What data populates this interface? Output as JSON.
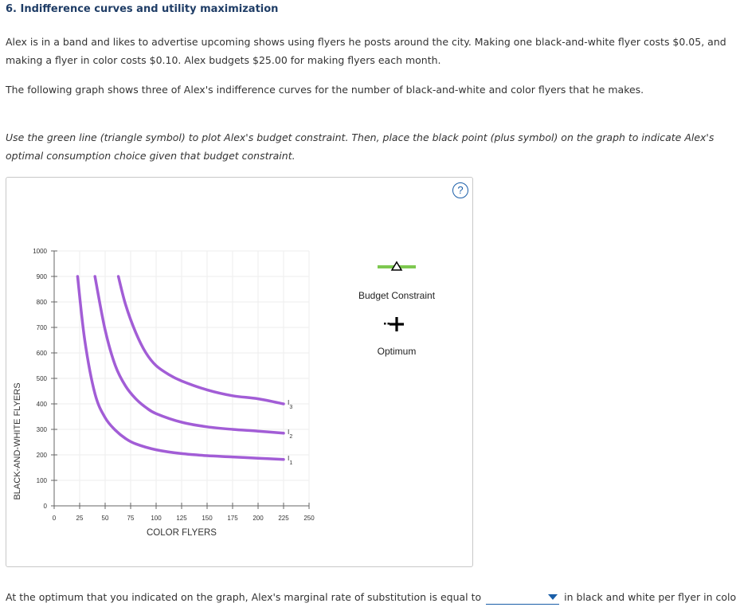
{
  "header": {
    "title": "6. Indifference curves and utility maximization"
  },
  "intro": {
    "p1": "Alex is in a band and likes to advertise upcoming shows using flyers he posts around the city. Making one black-and-white flyer costs $0.05, and making a flyer in color costs $0.10. Alex budgets $25.00 for making flyers each month.",
    "p2": "The following graph shows three of Alex's indifference curves for the number of black-and-white and color flyers that he makes."
  },
  "instruction": "Use the green line (triangle symbol) to plot Alex's budget constraint. Then, place the black point (plus symbol) on the graph to indicate Alex's optimal consumption choice given that budget constraint.",
  "help_label": "?",
  "palette": {
    "budget_label": "Budget Constraint",
    "budget_color": "#7ec850",
    "optimum_label": "Optimum",
    "optimum_color": "#000000"
  },
  "question": {
    "prefix": "At the optimum that you indicated on the graph, Alex's marginal rate of substitution is equal to",
    "selected": "",
    "suffix": "in black and white per flyer in color."
  },
  "chart_data": {
    "type": "line",
    "xlabel": "COLOR FLYERS",
    "ylabel": "BLACK-AND-WHITE FLYERS",
    "xlim": [
      0,
      250
    ],
    "ylim": [
      0,
      1000
    ],
    "xticks": [
      0,
      25,
      50,
      75,
      100,
      125,
      150,
      175,
      200,
      225,
      250
    ],
    "yticks": [
      0,
      100,
      200,
      300,
      400,
      500,
      600,
      700,
      800,
      900,
      1000
    ],
    "grid": true,
    "curve_color": "#a25dd6",
    "series": [
      {
        "label": "I",
        "sub": "1",
        "x": [
          23,
          30,
          40,
          50,
          60,
          70,
          80,
          100,
          125,
          150,
          175,
          200,
          225
        ],
        "y": [
          900,
          650,
          440,
          346,
          297,
          264,
          243,
          220,
          205,
          197,
          192,
          187,
          182
        ]
      },
      {
        "label": "I",
        "sub": "2",
        "x": [
          40,
          50,
          60,
          70,
          80,
          90,
          100,
          125,
          150,
          175,
          200,
          225
        ],
        "y": [
          900,
          690,
          550,
          470,
          420,
          386,
          362,
          328,
          310,
          300,
          293,
          285
        ]
      },
      {
        "label": "I",
        "sub": "3",
        "x": [
          63,
          70,
          80,
          90,
          100,
          112.5,
          125,
          150,
          175,
          200,
          225
        ],
        "y": [
          900,
          790,
          680,
          600,
          550,
          515,
          490,
          455,
          432,
          420,
          400
        ]
      }
    ]
  }
}
